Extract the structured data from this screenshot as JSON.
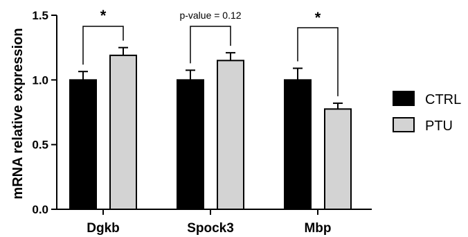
{
  "chart_data": {
    "type": "bar",
    "categories": [
      "Dgkb",
      "Spock3",
      "Mbp"
    ],
    "series": [
      {
        "name": "CTRL",
        "values": [
          1.0,
          1.0,
          1.0
        ],
        "errors": [
          0.065,
          0.075,
          0.09
        ],
        "color": "#000000"
      },
      {
        "name": "PTU",
        "values": [
          1.19,
          1.15,
          0.775
        ],
        "errors": [
          0.06,
          0.06,
          0.045
        ],
        "color": "#d3d3d3"
      }
    ],
    "title": "",
    "xlabel": "",
    "ylabel": "mRNA relative expression",
    "ylim": [
      0,
      1.5
    ],
    "yticks": [
      "0.0",
      "0.5",
      "1.0",
      "1.5"
    ],
    "legend_position": "right",
    "grid": false,
    "annotations": [
      "*",
      "p-value = 0.12",
      "*"
    ]
  }
}
